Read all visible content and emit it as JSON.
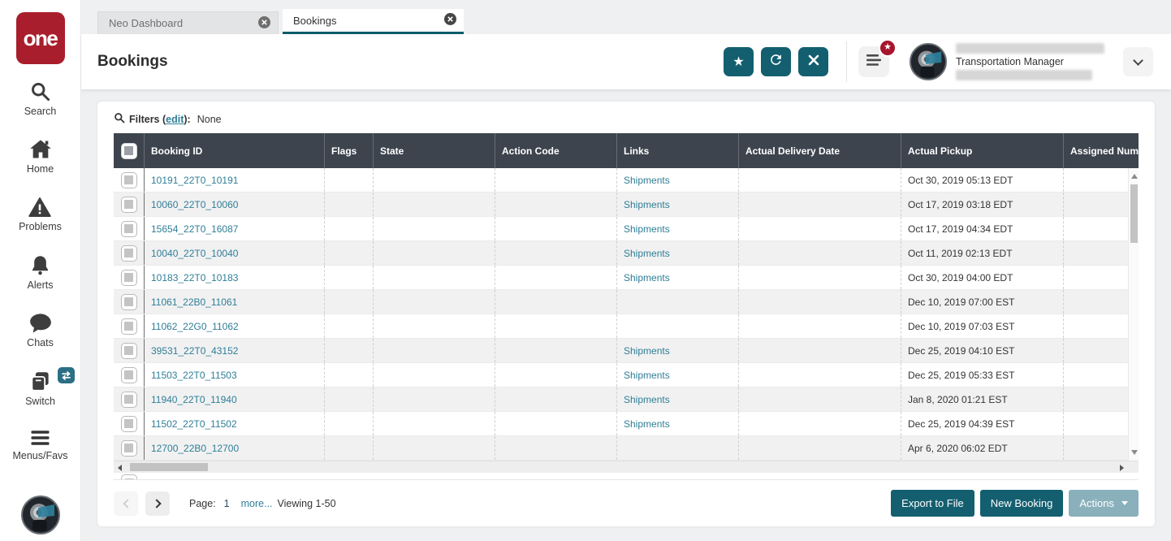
{
  "logo": {
    "text": "one",
    "color": "#a91e2c"
  },
  "sidebar": {
    "items": [
      {
        "icon": "search-icon",
        "label": "Search"
      },
      {
        "icon": "home-icon",
        "label": "Home"
      },
      {
        "icon": "warning-icon",
        "label": "Problems"
      },
      {
        "icon": "bell-icon",
        "label": "Alerts"
      },
      {
        "icon": "chat-icon",
        "label": "Chats"
      },
      {
        "icon": "switch-icon",
        "label": "Switch"
      },
      {
        "icon": "hamburger-icon",
        "label": "Menus/Favs"
      }
    ]
  },
  "tabs": [
    {
      "label": "Neo Dashboard",
      "active": false
    },
    {
      "label": "Bookings",
      "active": true
    }
  ],
  "header": {
    "title": "Bookings",
    "icon_buttons": [
      "favorite-star-icon",
      "refresh-icon",
      "close-x-icon"
    ],
    "user_role": "Transportation Manager"
  },
  "filters": {
    "label_prefix": "Filters (",
    "edit_link": "edit",
    "label_suffix": "):",
    "value": "None"
  },
  "table": {
    "columns": [
      "",
      "Booking ID",
      "Flags",
      "State",
      "Action Code",
      "Links",
      "Actual Delivery Date",
      "Actual Pickup",
      "Assigned Number"
    ],
    "rows": [
      {
        "booking_id": "10191_22T0_10191",
        "flags": "",
        "state": "",
        "action_code": "",
        "links": "Shipments",
        "actual_delivery_date": "",
        "actual_pickup": "Oct 30, 2019 05:13 EDT",
        "assigned_number": ""
      },
      {
        "booking_id": "10060_22T0_10060",
        "flags": "",
        "state": "",
        "action_code": "",
        "links": "Shipments",
        "actual_delivery_date": "",
        "actual_pickup": "Oct 17, 2019 03:18 EDT",
        "assigned_number": ""
      },
      {
        "booking_id": "15654_22T0_16087",
        "flags": "",
        "state": "",
        "action_code": "",
        "links": "Shipments",
        "actual_delivery_date": "",
        "actual_pickup": "Oct 17, 2019 04:34 EDT",
        "assigned_number": ""
      },
      {
        "booking_id": "10040_22T0_10040",
        "flags": "",
        "state": "",
        "action_code": "",
        "links": "Shipments",
        "actual_delivery_date": "",
        "actual_pickup": "Oct 11, 2019 02:13 EDT",
        "assigned_number": ""
      },
      {
        "booking_id": "10183_22T0_10183",
        "flags": "",
        "state": "",
        "action_code": "",
        "links": "Shipments",
        "actual_delivery_date": "",
        "actual_pickup": "Oct 30, 2019 04:00 EDT",
        "assigned_number": ""
      },
      {
        "booking_id": "11061_22B0_11061",
        "flags": "",
        "state": "",
        "action_code": "",
        "links": "",
        "actual_delivery_date": "",
        "actual_pickup": "Dec 10, 2019 07:00 EST",
        "assigned_number": ""
      },
      {
        "booking_id": "11062_22G0_11062",
        "flags": "",
        "state": "",
        "action_code": "",
        "links": "",
        "actual_delivery_date": "",
        "actual_pickup": "Dec 10, 2019 07:03 EST",
        "assigned_number": ""
      },
      {
        "booking_id": "39531_22T0_43152",
        "flags": "",
        "state": "",
        "action_code": "",
        "links": "Shipments",
        "actual_delivery_date": "",
        "actual_pickup": "Dec 25, 2019 04:10 EST",
        "assigned_number": ""
      },
      {
        "booking_id": "11503_22T0_11503",
        "flags": "",
        "state": "",
        "action_code": "",
        "links": "Shipments",
        "actual_delivery_date": "",
        "actual_pickup": "Dec 25, 2019 05:33 EST",
        "assigned_number": ""
      },
      {
        "booking_id": "11940_22T0_11940",
        "flags": "",
        "state": "",
        "action_code": "",
        "links": "Shipments",
        "actual_delivery_date": "",
        "actual_pickup": "Jan 8, 2020 01:21 EST",
        "assigned_number": ""
      },
      {
        "booking_id": "11502_22T0_11502",
        "flags": "",
        "state": "",
        "action_code": "",
        "links": "Shipments",
        "actual_delivery_date": "",
        "actual_pickup": "Dec 25, 2019 04:39 EST",
        "assigned_number": ""
      },
      {
        "booking_id": "12700_22B0_12700",
        "flags": "",
        "state": "",
        "action_code": "",
        "links": "",
        "actual_delivery_date": "",
        "actual_pickup": "Apr 6, 2020 06:02 EDT",
        "assigned_number": ""
      }
    ]
  },
  "pagination": {
    "page_label": "Page:",
    "page_number": "1",
    "more_link": "more...",
    "viewing": "Viewing 1-50"
  },
  "footer": {
    "export_button": "Export to File",
    "new_booking_button": "New Booking",
    "actions_button": "Actions"
  },
  "colors": {
    "teal_button": "#135f70",
    "teal_link": "#2f7e96",
    "table_header_bg": "#3d444e",
    "logo_red": "#a91e2c",
    "badge_red": "#a6152c",
    "actions_disabled": "#8ab0bc",
    "active_tab_underline": "#0d5c6b"
  }
}
